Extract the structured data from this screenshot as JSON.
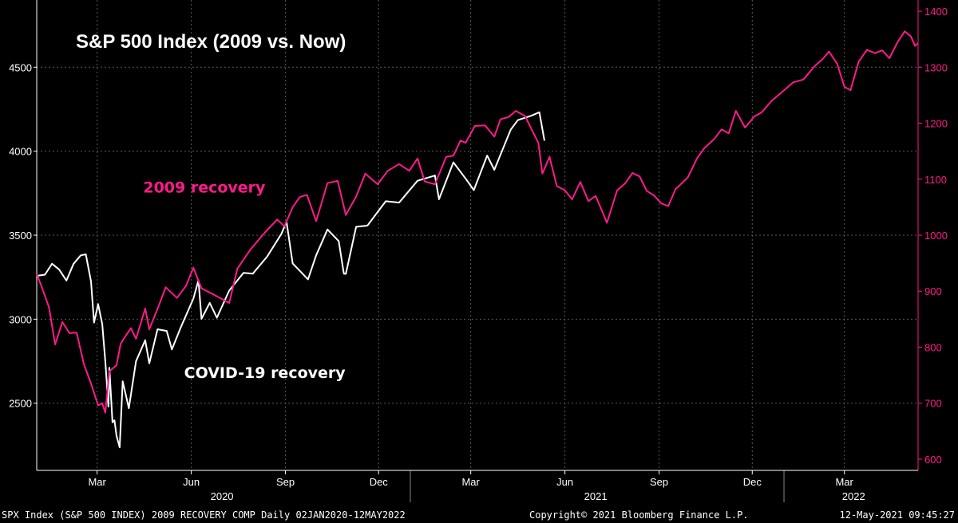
{
  "chart_data": {
    "type": "line",
    "title": "S&P 500 Index (2009 vs. Now)",
    "x_range": [
      "2020-01-02",
      "2022-05-12"
    ],
    "y_left_range": [
      2100,
      4900
    ],
    "y_right_range": [
      580,
      1420
    ],
    "y_left_ticks": [
      "2500",
      "3000",
      "3500",
      "4000",
      "4500"
    ],
    "y_right_ticks": [
      "600",
      "700",
      "800",
      "900",
      "1000",
      "1100",
      "1200",
      "1300",
      "1400"
    ],
    "x_ticks": [
      {
        "label": "Mar",
        "date": "2020-03-01"
      },
      {
        "label": "Jun",
        "date": "2020-06-01"
      },
      {
        "label": "Sep",
        "date": "2020-09-01"
      },
      {
        "label": "Dec",
        "date": "2020-12-01"
      },
      {
        "label": "Mar",
        "date": "2021-03-01"
      },
      {
        "label": "Jun",
        "date": "2021-06-01"
      },
      {
        "label": "Sep",
        "date": "2021-09-01"
      },
      {
        "label": "Dec",
        "date": "2021-12-01"
      },
      {
        "label": "Mar",
        "date": "2022-03-01"
      }
    ],
    "years": [
      {
        "label": "2020",
        "center": "2020-07-01"
      },
      {
        "label": "2021",
        "center": "2021-07-01"
      },
      {
        "label": "2022",
        "center": "2022-03-10"
      }
    ],
    "series": [
      {
        "name": "COVID-19 recovery",
        "axis": "left",
        "color": "#ffffff",
        "points": [
          [
            "2020-01-02",
            3258
          ],
          [
            "2020-01-10",
            3265
          ],
          [
            "2020-01-17",
            3330
          ],
          [
            "2020-01-24",
            3295
          ],
          [
            "2020-01-31",
            3230
          ],
          [
            "2020-02-07",
            3330
          ],
          [
            "2020-02-14",
            3380
          ],
          [
            "2020-02-19",
            3386
          ],
          [
            "2020-02-24",
            3225
          ],
          [
            "2020-02-27",
            2980
          ],
          [
            "2020-03-02",
            3090
          ],
          [
            "2020-03-06",
            2970
          ],
          [
            "2020-03-09",
            2750
          ],
          [
            "2020-03-12",
            2480
          ],
          [
            "2020-03-13",
            2711
          ],
          [
            "2020-03-16",
            2386
          ],
          [
            "2020-03-18",
            2398
          ],
          [
            "2020-03-20",
            2305
          ],
          [
            "2020-03-23",
            2237
          ],
          [
            "2020-03-26",
            2630
          ],
          [
            "2020-04-01",
            2470
          ],
          [
            "2020-04-08",
            2750
          ],
          [
            "2020-04-17",
            2875
          ],
          [
            "2020-04-21",
            2737
          ],
          [
            "2020-04-29",
            2940
          ],
          [
            "2020-05-08",
            2930
          ],
          [
            "2020-05-13",
            2820
          ],
          [
            "2020-05-22",
            2955
          ],
          [
            "2020-06-03",
            3122
          ],
          [
            "2020-06-08",
            3232
          ],
          [
            "2020-06-11",
            3002
          ],
          [
            "2020-06-19",
            3097
          ],
          [
            "2020-06-26",
            3009
          ],
          [
            "2020-07-08",
            3170
          ],
          [
            "2020-07-22",
            3276
          ],
          [
            "2020-07-31",
            3271
          ],
          [
            "2020-08-14",
            3372
          ],
          [
            "2020-08-28",
            3508
          ],
          [
            "2020-09-02",
            3580
          ],
          [
            "2020-09-08",
            3332
          ],
          [
            "2020-09-23",
            3237
          ],
          [
            "2020-10-01",
            3380
          ],
          [
            "2020-10-12",
            3534
          ],
          [
            "2020-10-23",
            3465
          ],
          [
            "2020-10-28",
            3271
          ],
          [
            "2020-10-30",
            3270
          ],
          [
            "2020-11-09",
            3550
          ],
          [
            "2020-11-20",
            3557
          ],
          [
            "2020-12-08",
            3702
          ],
          [
            "2020-12-21",
            3694
          ],
          [
            "2021-01-08",
            3824
          ],
          [
            "2021-01-25",
            3855
          ],
          [
            "2021-01-29",
            3714
          ],
          [
            "2021-02-12",
            3934
          ],
          [
            "2021-02-25",
            3829
          ],
          [
            "2021-03-04",
            3768
          ],
          [
            "2021-03-17",
            3974
          ],
          [
            "2021-03-24",
            3889
          ],
          [
            "2021-04-09",
            4128
          ],
          [
            "2021-04-16",
            4185
          ],
          [
            "2021-04-29",
            4211
          ],
          [
            "2021-05-07",
            4232
          ],
          [
            "2021-05-12",
            4063
          ]
        ]
      },
      {
        "name": "2009 recovery",
        "axis": "right",
        "color": "#ff1a8c",
        "points": [
          [
            "2020-01-02",
            931
          ],
          [
            "2020-01-07",
            907
          ],
          [
            "2020-01-14",
            871
          ],
          [
            "2020-01-20",
            805
          ],
          [
            "2020-01-27",
            845
          ],
          [
            "2020-02-03",
            825
          ],
          [
            "2020-02-10",
            826
          ],
          [
            "2020-02-17",
            770
          ],
          [
            "2020-02-24",
            735
          ],
          [
            "2020-03-02",
            696
          ],
          [
            "2020-03-06",
            700
          ],
          [
            "2020-03-09",
            683
          ],
          [
            "2020-03-13",
            757
          ],
          [
            "2020-03-20",
            768
          ],
          [
            "2020-03-24",
            806
          ],
          [
            "2020-03-27",
            815
          ],
          [
            "2020-04-03",
            834
          ],
          [
            "2020-04-08",
            815
          ],
          [
            "2020-04-17",
            869
          ],
          [
            "2020-04-21",
            832
          ],
          [
            "2020-04-30",
            873
          ],
          [
            "2020-05-07",
            907
          ],
          [
            "2020-05-18",
            888
          ],
          [
            "2020-05-27",
            910
          ],
          [
            "2020-06-03",
            942
          ],
          [
            "2020-06-11",
            905
          ],
          [
            "2020-06-24",
            893
          ],
          [
            "2020-07-08",
            879
          ],
          [
            "2020-07-16",
            940
          ],
          [
            "2020-07-29",
            975
          ],
          [
            "2020-08-12",
            1005
          ],
          [
            "2020-08-24",
            1028
          ],
          [
            "2020-08-31",
            1016
          ],
          [
            "2020-09-08",
            1050
          ],
          [
            "2020-09-15",
            1068
          ],
          [
            "2020-09-22",
            1072
          ],
          [
            "2020-10-01",
            1025
          ],
          [
            "2020-10-12",
            1093
          ],
          [
            "2020-10-22",
            1097
          ],
          [
            "2020-10-30",
            1036
          ],
          [
            "2020-11-09",
            1069
          ],
          [
            "2020-11-18",
            1110
          ],
          [
            "2020-11-30",
            1091
          ],
          [
            "2020-12-10",
            1115
          ],
          [
            "2020-12-21",
            1127
          ],
          [
            "2020-12-31",
            1115
          ],
          [
            "2021-01-08",
            1137
          ],
          [
            "2021-01-15",
            1096
          ],
          [
            "2021-01-25",
            1091
          ],
          [
            "2021-02-05",
            1140
          ],
          [
            "2021-02-12",
            1142
          ],
          [
            "2021-02-19",
            1169
          ],
          [
            "2021-02-24",
            1165
          ],
          [
            "2021-03-05",
            1195
          ],
          [
            "2021-03-15",
            1196
          ],
          [
            "2021-03-24",
            1176
          ],
          [
            "2021-03-30",
            1207
          ],
          [
            "2021-04-07",
            1211
          ],
          [
            "2021-04-14",
            1222
          ],
          [
            "2021-04-23",
            1213
          ],
          [
            "2021-04-30",
            1187
          ],
          [
            "2021-05-06",
            1165
          ],
          [
            "2021-05-10",
            1110
          ],
          [
            "2021-05-17",
            1140
          ],
          [
            "2021-05-24",
            1088
          ],
          [
            "2021-06-01",
            1080
          ],
          [
            "2021-06-08",
            1064
          ],
          [
            "2021-06-16",
            1095
          ],
          [
            "2021-06-24",
            1061
          ],
          [
            "2021-07-01",
            1070
          ],
          [
            "2021-07-08",
            1040
          ],
          [
            "2021-07-12",
            1022
          ],
          [
            "2021-07-22",
            1080
          ],
          [
            "2021-07-30",
            1093
          ],
          [
            "2021-08-06",
            1111
          ],
          [
            "2021-08-13",
            1105
          ],
          [
            "2021-08-20",
            1079
          ],
          [
            "2021-08-27",
            1071
          ],
          [
            "2021-09-03",
            1057
          ],
          [
            "2021-09-10",
            1052
          ],
          [
            "2021-09-17",
            1082
          ],
          [
            "2021-09-29",
            1103
          ],
          [
            "2021-10-08",
            1137
          ],
          [
            "2021-10-15",
            1155
          ],
          [
            "2021-10-25",
            1172
          ],
          [
            "2021-11-01",
            1189
          ],
          [
            "2021-11-08",
            1182
          ],
          [
            "2021-11-15",
            1222
          ],
          [
            "2021-11-24",
            1192
          ],
          [
            "2021-12-03",
            1212
          ],
          [
            "2021-12-10",
            1219
          ],
          [
            "2021-12-20",
            1240
          ],
          [
            "2021-12-31",
            1257
          ],
          [
            "2022-01-10",
            1273
          ],
          [
            "2022-01-20",
            1278
          ],
          [
            "2022-01-31",
            1302
          ],
          [
            "2022-02-08",
            1315
          ],
          [
            "2022-02-14",
            1328
          ],
          [
            "2022-02-22",
            1306
          ],
          [
            "2022-03-01",
            1265
          ],
          [
            "2022-03-07",
            1259
          ],
          [
            "2022-03-15",
            1310
          ],
          [
            "2022-03-23",
            1331
          ],
          [
            "2022-03-31",
            1325
          ],
          [
            "2022-04-07",
            1330
          ],
          [
            "2022-04-14",
            1316
          ],
          [
            "2022-04-22",
            1345
          ],
          [
            "2022-04-29",
            1364
          ],
          [
            "2022-05-05",
            1355
          ],
          [
            "2022-05-09",
            1338
          ],
          [
            "2022-05-12",
            1343
          ]
        ]
      }
    ],
    "annotations": [
      {
        "text": "2009 recovery",
        "color": "#ff1a8c",
        "date": "2020-04-15",
        "value": 3755
      },
      {
        "text": "COVID-19 recovery",
        "color": "#ffffff",
        "date": "2020-05-25",
        "value": 2650
      }
    ],
    "grid": true,
    "legend": "none"
  },
  "colors": {
    "background": "#000000",
    "covid_line": "#ffffff",
    "recovery_2009_line": "#ff1a8c",
    "right_axis": "#ff1a8c",
    "grid": "#5a5a5a"
  },
  "footer": {
    "left": "SPX Index (S&P 500 INDEX) 2009 RECOVERY COMP  Daily 02JAN2020-12MAY2022",
    "center": "Copyright© 2021 Bloomberg Finance L.P.",
    "right": "12-May-2021 09:45:27"
  }
}
